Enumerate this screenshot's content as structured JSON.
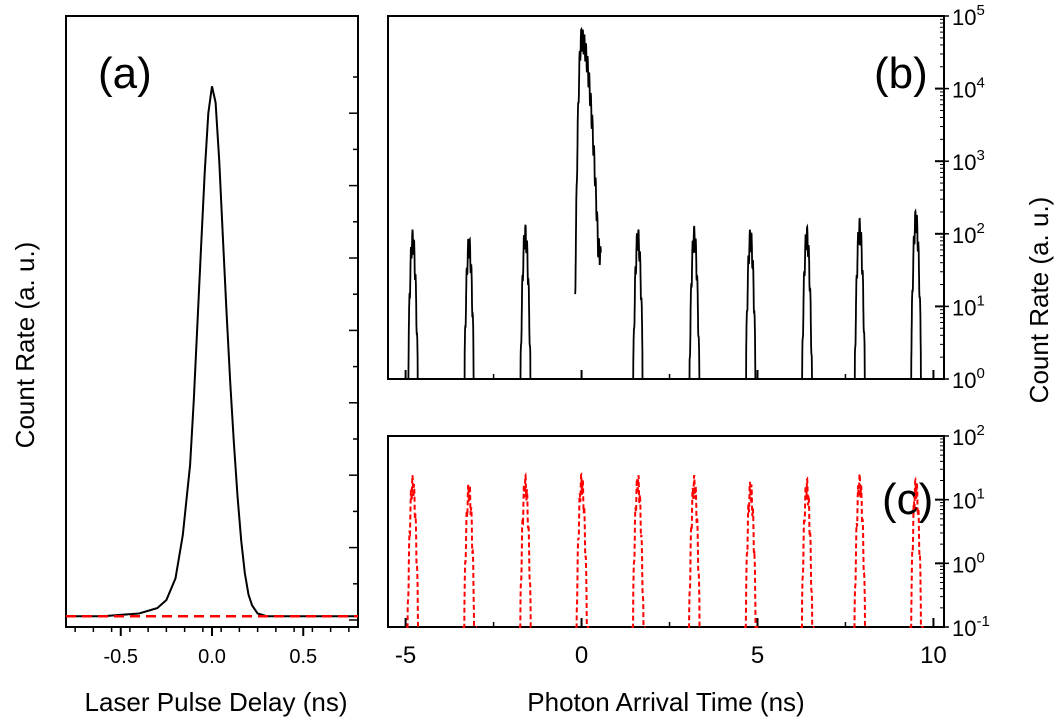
{
  "figure": {
    "left_ylabel": "Count Rate (a. u.)",
    "right_ylabel": "Count Rate (a. u.)"
  },
  "chart_data": [
    {
      "panel": "(a)",
      "type": "line",
      "xlabel": "Laser Pulse Delay (ns)",
      "ylabel": "Count Rate (a. u.)",
      "xlim": [
        -0.8,
        0.8
      ],
      "ylim": [
        0,
        1.13
      ],
      "xticks": [
        -0.5,
        0.0,
        0.5
      ],
      "xtick_labels": [
        "-0.5",
        "0.0",
        "0.5"
      ],
      "yticks_unlabeled": true,
      "series": [
        {
          "style": "solid",
          "color": "#000000",
          "x": [
            -0.8,
            -0.6,
            -0.4,
            -0.3,
            -0.25,
            -0.2,
            -0.16,
            -0.12,
            -0.1,
            -0.08,
            -0.06,
            -0.04,
            -0.02,
            0.0,
            0.02,
            0.04,
            0.06,
            0.08,
            0.1,
            0.12,
            0.14,
            0.16,
            0.18,
            0.2,
            0.22,
            0.25,
            0.3,
            0.4,
            0.6,
            0.8
          ],
          "y": [
            0.02,
            0.02,
            0.025,
            0.035,
            0.05,
            0.09,
            0.17,
            0.3,
            0.42,
            0.56,
            0.7,
            0.84,
            0.95,
            1.0,
            0.97,
            0.86,
            0.72,
            0.58,
            0.45,
            0.34,
            0.24,
            0.16,
            0.1,
            0.06,
            0.04,
            0.025,
            0.02,
            0.02,
            0.02,
            0.02
          ]
        },
        {
          "style": "dashed",
          "color": "#ff0000",
          "x": [
            -0.8,
            0.8
          ],
          "y": [
            0.02,
            0.02
          ]
        }
      ]
    },
    {
      "panel": "(b)",
      "type": "line",
      "xlim": [
        -5.5,
        10.3
      ],
      "yscale": "log",
      "ylim": [
        1,
        100000
      ],
      "ytick_labels": [
        "10^0",
        "10^1",
        "10^2",
        "10^3",
        "10^4",
        "10^5"
      ],
      "series": [
        {
          "style": "solid",
          "color": "#000000",
          "peaks": [
            {
              "center": -4.8,
              "height": 85
            },
            {
              "center": -3.2,
              "height": 70
            },
            {
              "center": -1.6,
              "height": 100
            },
            {
              "center": 0.0,
              "height": 50000
            },
            {
              "center": 1.6,
              "height": 90
            },
            {
              "center": 3.2,
              "height": 95
            },
            {
              "center": 4.8,
              "height": 90
            },
            {
              "center": 6.4,
              "height": 95
            },
            {
              "center": 7.9,
              "height": 120
            },
            {
              "center": 9.5,
              "height": 160
            }
          ]
        }
      ]
    },
    {
      "panel": "(c)",
      "type": "line",
      "xlabel": "Photon Arrival Time (ns)",
      "xlim": [
        -5.5,
        10.3
      ],
      "xticks": [
        -5,
        0,
        5,
        10
      ],
      "xtick_labels": [
        "-5",
        "0",
        "5",
        "10"
      ],
      "yscale": "log",
      "ylim": [
        0.1,
        100
      ],
      "ytick_labels": [
        "10^-1",
        "10^0",
        "10^1",
        "10^2"
      ],
      "series": [
        {
          "style": "dashed",
          "color": "#ff0000",
          "peaks": [
            {
              "center": -4.8,
              "height": 18
            },
            {
              "center": -3.2,
              "height": 14
            },
            {
              "center": -1.6,
              "height": 18
            },
            {
              "center": 0.0,
              "height": 19
            },
            {
              "center": 1.6,
              "height": 19
            },
            {
              "center": 3.2,
              "height": 18
            },
            {
              "center": 4.8,
              "height": 15
            },
            {
              "center": 6.4,
              "height": 16
            },
            {
              "center": 7.9,
              "height": 19
            },
            {
              "center": 9.5,
              "height": 16
            }
          ]
        }
      ]
    }
  ]
}
